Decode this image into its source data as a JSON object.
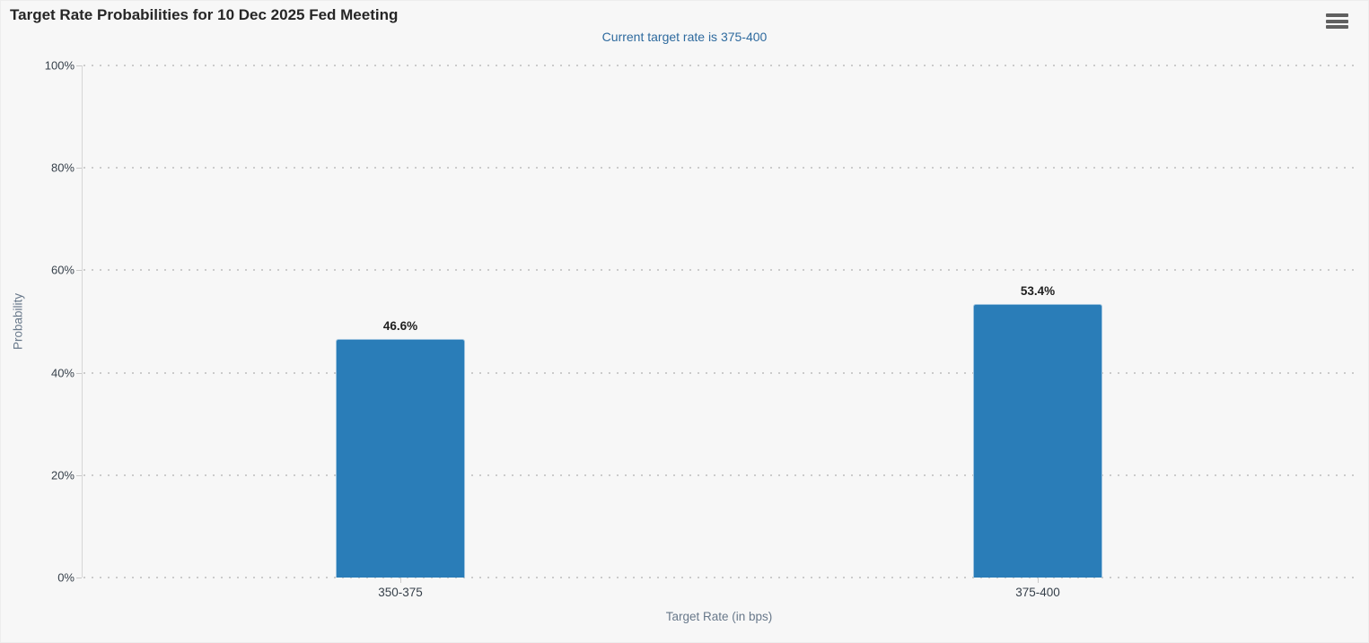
{
  "chart_data": {
    "type": "bar",
    "title": "Target Rate Probabilities for 10 Dec 2025 Fed Meeting",
    "subtitle": "Current target rate is 375-400",
    "categories": [
      "350-375",
      "375-400"
    ],
    "values": [
      46.6,
      53.4
    ],
    "value_labels": [
      "46.6%",
      "53.4%"
    ],
    "xlabel": "Target Rate (in bps)",
    "ylabel": "Probability",
    "ylim": [
      0,
      100
    ],
    "yticks": [
      "0%",
      "20%",
      "40%",
      "60%",
      "80%",
      "100%"
    ],
    "grid": "horizontal-dotted",
    "legend": "none",
    "bar_color": "#2a7db8"
  },
  "icons": {
    "menu": "hamburger-menu-icon"
  },
  "colors": {
    "background": "#f7f7f7",
    "title_text": "#262626",
    "subtitle_text": "#2e6a9e",
    "bar": "#2a7db8",
    "gridline": "#cbcbcb",
    "axis_line": "#d6d6d6",
    "tick_label": "#37414b",
    "axis_title": "#68788a",
    "data_label": "#1f1f1f",
    "menu_icon": "#606060"
  }
}
